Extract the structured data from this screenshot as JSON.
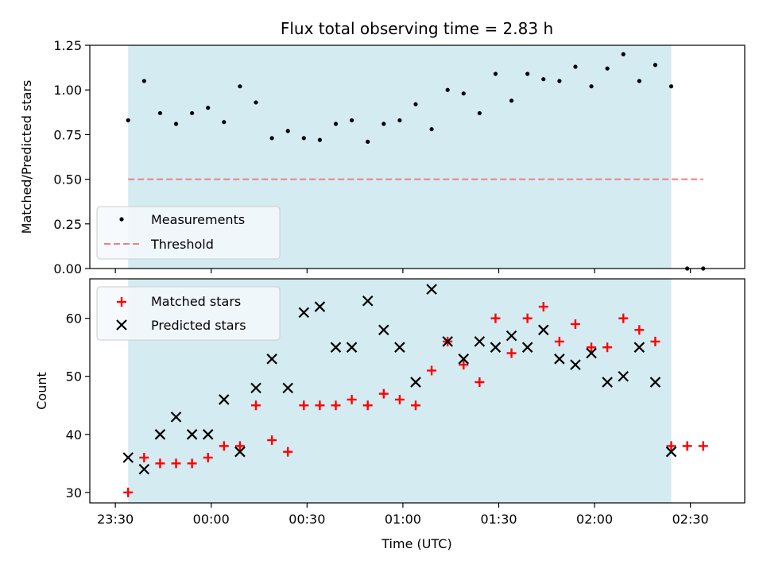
{
  "chart_data": [
    {
      "type": "scatter",
      "title": "Flux total observing time = 2.83 h",
      "xlabel": "",
      "ylabel": "Matched/Predicted stars",
      "ylim": [
        0,
        1.25
      ],
      "yticks": [
        "0.00",
        "0.25",
        "0.50",
        "0.75",
        "1.00",
        "1.25"
      ],
      "yticks_values": [
        0,
        0.25,
        0.5,
        0.75,
        1.0,
        1.25
      ],
      "x_axis_unit": "minutes relative to 00:00 UTC",
      "shaded_x_range": [
        -26,
        144
      ],
      "shaded_color": "#add8e6",
      "legend_position": "lower-left",
      "series": [
        {
          "name": "Measurements",
          "marker": "dot",
          "color": "#000000",
          "x": [
            -26,
            -21,
            -16,
            -11,
            -6,
            -1,
            4,
            9,
            14,
            19,
            24,
            29,
            34,
            39,
            44,
            49,
            54,
            59,
            64,
            69,
            74,
            79,
            84,
            89,
            94,
            99,
            104,
            109,
            114,
            119,
            124,
            129,
            134,
            139,
            144,
            149,
            154
          ],
          "y": [
            0.83,
            1.05,
            0.87,
            0.81,
            0.87,
            0.9,
            0.82,
            1.02,
            0.93,
            0.73,
            0.77,
            0.73,
            0.72,
            0.81,
            0.83,
            0.71,
            0.81,
            0.83,
            0.92,
            0.78,
            1.0,
            0.98,
            0.87,
            1.09,
            0.94,
            1.09,
            1.06,
            1.05,
            1.13,
            1.02,
            1.12,
            1.2,
            1.05,
            1.14,
            1.02,
            0.0,
            0.0
          ]
        },
        {
          "name": "Threshold",
          "line_style": "dashed",
          "color": "#f08080",
          "x": [
            -26,
            154
          ],
          "y": [
            0.5,
            0.5
          ]
        }
      ]
    },
    {
      "type": "scatter",
      "title": "",
      "xlabel": "Time (UTC)",
      "ylabel": "Count",
      "ylim": [
        28.2,
        66.8
      ],
      "yticks": [
        "30",
        "40",
        "50",
        "60"
      ],
      "yticks_values": [
        30,
        40,
        50,
        60
      ],
      "xticks": [
        "23:30",
        "00:00",
        "00:30",
        "01:00",
        "01:30",
        "02:00",
        "02:30"
      ],
      "xticks_values": [
        -30,
        0,
        30,
        60,
        90,
        120,
        150
      ],
      "xlim": [
        -38,
        167
      ],
      "shaded_x_range": [
        -26,
        144
      ],
      "shaded_color": "#add8e6",
      "legend_position": "upper-left",
      "series": [
        {
          "name": "Matched stars",
          "marker": "plus",
          "color": "#ff0000",
          "x": [
            -26,
            -21,
            -16,
            -11,
            -6,
            -1,
            4,
            9,
            14,
            19,
            24,
            29,
            34,
            39,
            44,
            49,
            54,
            59,
            64,
            69,
            74,
            79,
            84,
            89,
            94,
            99,
            104,
            109,
            114,
            119,
            124,
            129,
            134,
            139,
            144,
            149,
            154
          ],
          "y": [
            30,
            36,
            35,
            35,
            35,
            36,
            38,
            38,
            45,
            39,
            37,
            45,
            45,
            45,
            46,
            45,
            47,
            46,
            45,
            51,
            56,
            52,
            49,
            60,
            54,
            60,
            62,
            56,
            59,
            55,
            55,
            60,
            58,
            56,
            38,
            38,
            38
          ]
        },
        {
          "name": "Predicted stars",
          "marker": "x",
          "color": "#000000",
          "x": [
            -26,
            -21,
            -16,
            -11,
            -6,
            -1,
            4,
            9,
            14,
            19,
            24,
            29,
            34,
            39,
            44,
            49,
            54,
            59,
            64,
            69,
            74,
            79,
            84,
            89,
            94,
            99,
            104,
            109,
            114,
            119,
            124,
            129,
            134,
            139,
            144
          ],
          "y": [
            36,
            34,
            40,
            43,
            40,
            40,
            46,
            37,
            48,
            53,
            48,
            61,
            62,
            55,
            55,
            63,
            58,
            55,
            49,
            65,
            56,
            53,
            56,
            55,
            57,
            55,
            58,
            53,
            52,
            54,
            49,
            50,
            55,
            49,
            37
          ]
        }
      ]
    }
  ]
}
